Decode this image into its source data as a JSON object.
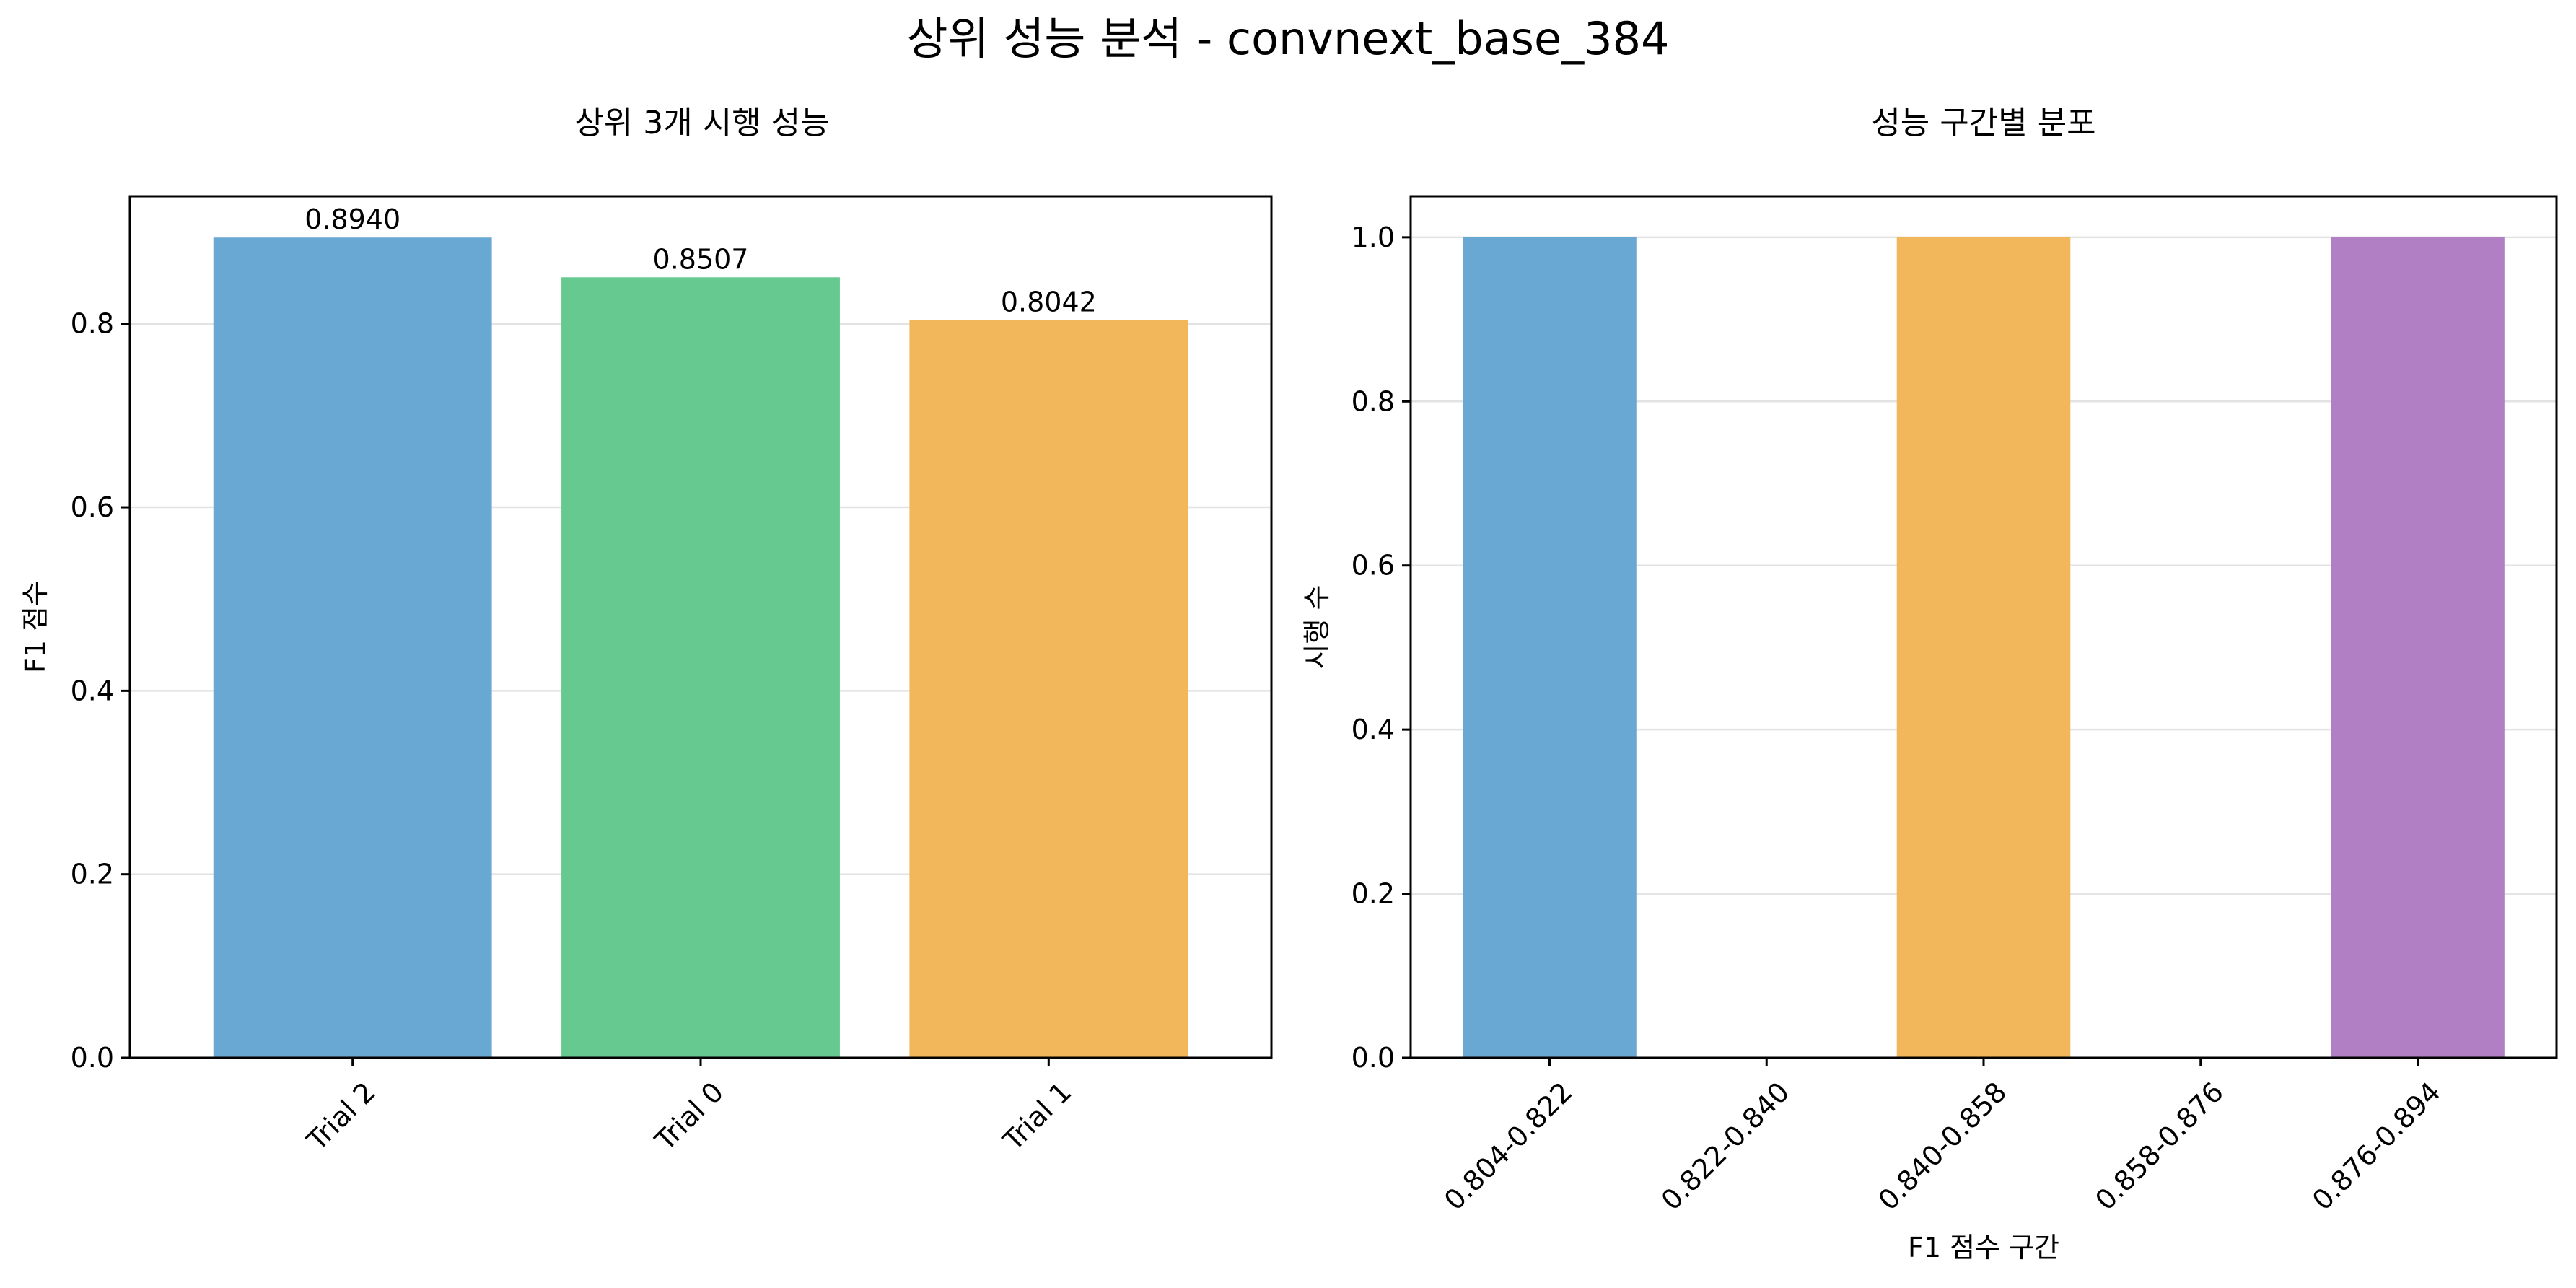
{
  "suptitle": "상위 성능 분석 - convnext_base_384",
  "chart_data": [
    {
      "type": "bar",
      "title": "상위 3개 시행 성능",
      "xlabel": "",
      "ylabel": "F1 점수",
      "categories": [
        "Trial 2",
        "Trial 0",
        "Trial 1"
      ],
      "values": [
        0.894,
        0.8507,
        0.8042
      ],
      "data_labels": [
        "0.8940",
        "0.8507",
        "0.8042"
      ],
      "colors": [
        "#6aa8d4",
        "#66c98f",
        "#f3b75b"
      ],
      "ylim": [
        0,
        0.939
      ],
      "yticks": [
        "0.0",
        "0.2",
        "0.4",
        "0.6",
        "0.8"
      ],
      "ytick_values": [
        0,
        0.2,
        0.4,
        0.6,
        0.8
      ],
      "grid": true
    },
    {
      "type": "bar",
      "title": "성능 구간별 분포",
      "xlabel": "F1 점수 구간",
      "ylabel": "시행 수",
      "categories": [
        "0.804-0.822",
        "0.822-0.840",
        "0.840-0.858",
        "0.858-0.876",
        "0.876-0.894"
      ],
      "values": [
        1,
        0,
        1,
        0,
        1
      ],
      "colors": [
        "#6aa8d4",
        "#6aa8d4",
        "#f3b75b",
        "#f3b75b",
        "#b07fc4"
      ],
      "ylim": [
        0,
        1.05
      ],
      "yticks": [
        "0.0",
        "0.2",
        "0.4",
        "0.6",
        "0.8",
        "1.0"
      ],
      "ytick_values": [
        0,
        0.2,
        0.4,
        0.6,
        0.8,
        1.0
      ],
      "grid": true
    }
  ]
}
